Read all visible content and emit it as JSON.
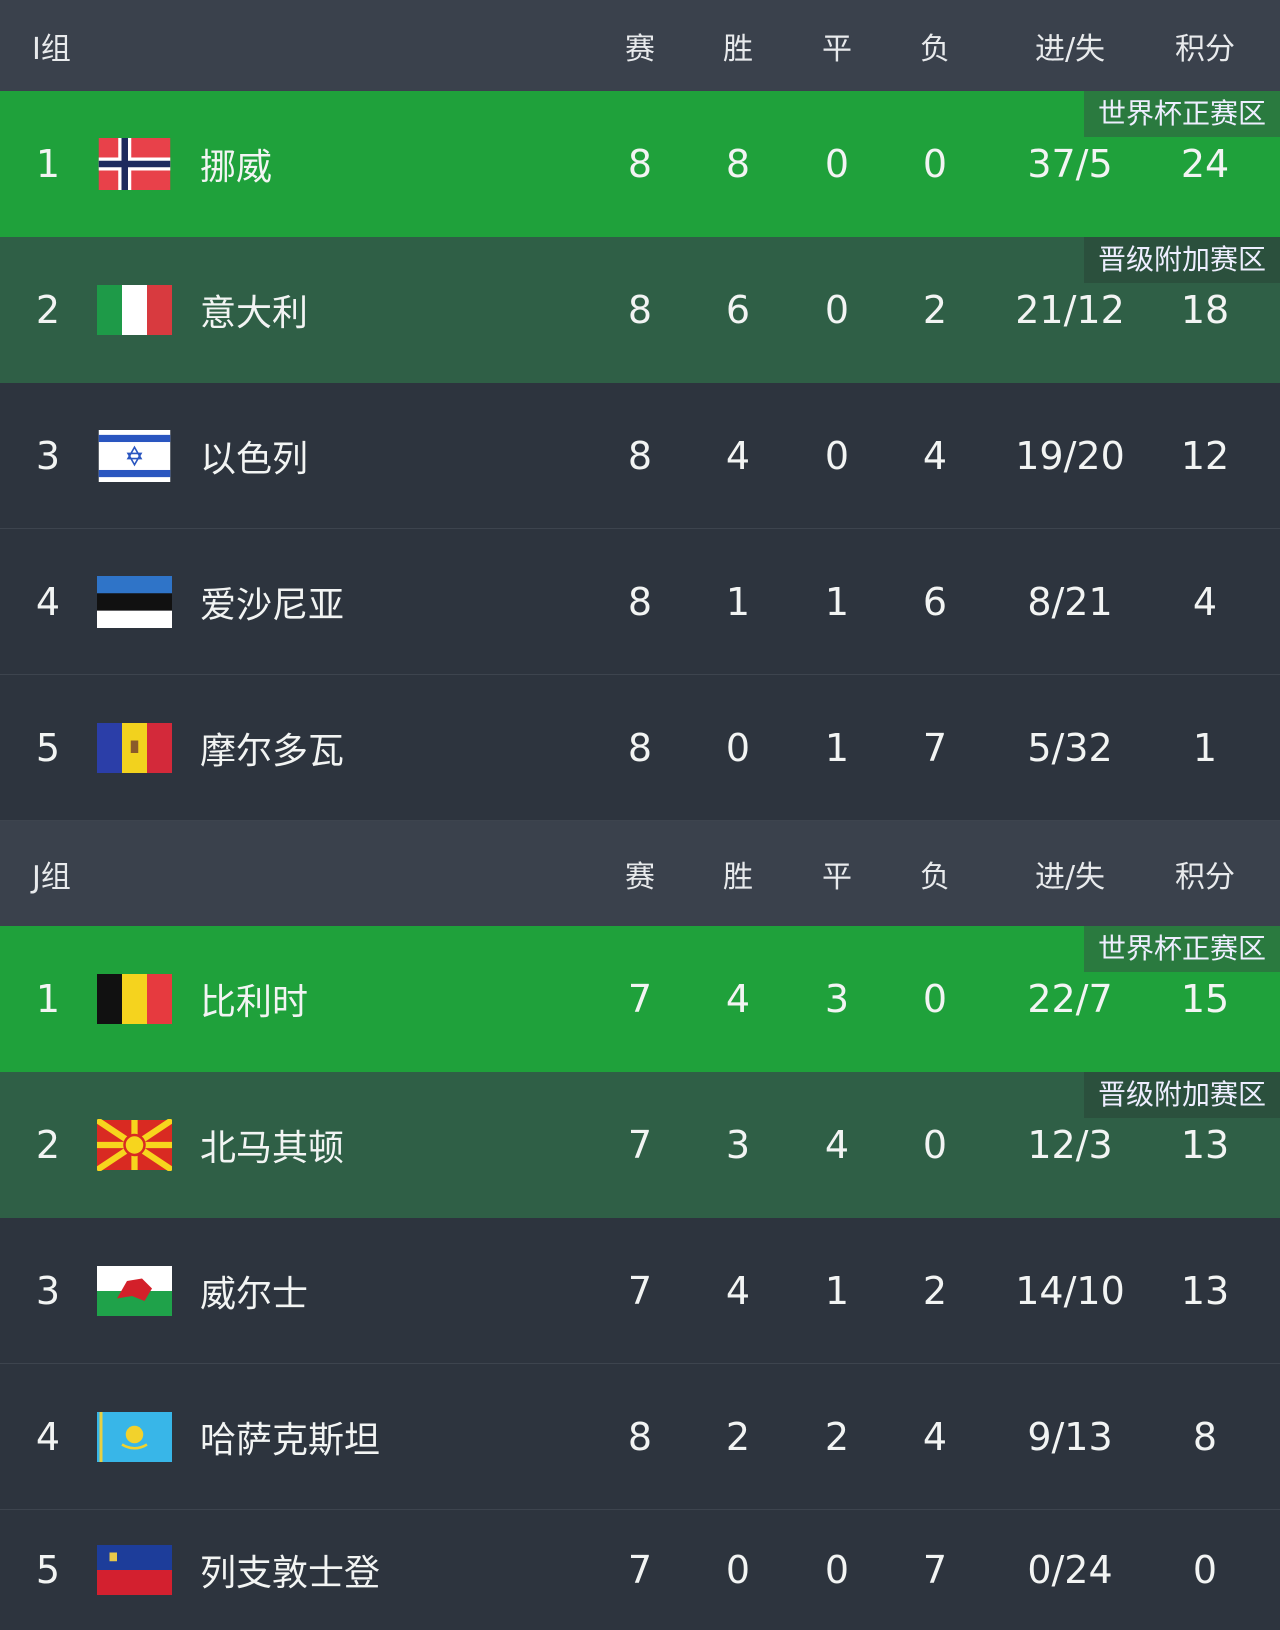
{
  "columns": {
    "played": "赛",
    "won": "胜",
    "drawn": "平",
    "lost": "负",
    "goals": "进/失",
    "points": "积分"
  },
  "zones": {
    "qualify": "世界杯正赛区",
    "playoff": "晋级附加赛区"
  },
  "colors": {
    "qualify": "#1fa13b",
    "playoff": "#2f5f46",
    "row": "#2d343e",
    "header": "#3a414c"
  },
  "groups": [
    {
      "name": "I组",
      "rows": [
        {
          "rank": "1",
          "team": "挪威",
          "flag": "norway-flag",
          "p": "8",
          "w": "8",
          "d": "0",
          "l": "0",
          "g": "37/5",
          "pts": "24",
          "zone": "qualify"
        },
        {
          "rank": "2",
          "team": "意大利",
          "flag": "italy-flag",
          "p": "8",
          "w": "6",
          "d": "0",
          "l": "2",
          "g": "21/12",
          "pts": "18",
          "zone": "playoff"
        },
        {
          "rank": "3",
          "team": "以色列",
          "flag": "israel-flag",
          "p": "8",
          "w": "4",
          "d": "0",
          "l": "4",
          "g": "19/20",
          "pts": "12"
        },
        {
          "rank": "4",
          "team": "爱沙尼亚",
          "flag": "estonia-flag",
          "p": "8",
          "w": "1",
          "d": "1",
          "l": "6",
          "g": "8/21",
          "pts": "4"
        },
        {
          "rank": "5",
          "team": "摩尔多瓦",
          "flag": "moldova-flag",
          "p": "8",
          "w": "0",
          "d": "1",
          "l": "7",
          "g": "5/32",
          "pts": "1"
        }
      ]
    },
    {
      "name": "J组",
      "rows": [
        {
          "rank": "1",
          "team": "比利时",
          "flag": "belgium-flag",
          "p": "7",
          "w": "4",
          "d": "3",
          "l": "0",
          "g": "22/7",
          "pts": "15",
          "zone": "qualify"
        },
        {
          "rank": "2",
          "team": "北马其顿",
          "flag": "north-macedonia-flag",
          "p": "7",
          "w": "3",
          "d": "4",
          "l": "0",
          "g": "12/3",
          "pts": "13",
          "zone": "playoff"
        },
        {
          "rank": "3",
          "team": "威尔士",
          "flag": "wales-flag",
          "p": "7",
          "w": "4",
          "d": "1",
          "l": "2",
          "g": "14/10",
          "pts": "13"
        },
        {
          "rank": "4",
          "team": "哈萨克斯坦",
          "flag": "kazakhstan-flag",
          "p": "8",
          "w": "2",
          "d": "2",
          "l": "4",
          "g": "9/13",
          "pts": "8"
        },
        {
          "rank": "5",
          "team": "列支敦士登",
          "flag": "liechtenstein-flag",
          "p": "7",
          "w": "0",
          "d": "0",
          "l": "7",
          "g": "0/24",
          "pts": "0"
        }
      ]
    }
  ]
}
